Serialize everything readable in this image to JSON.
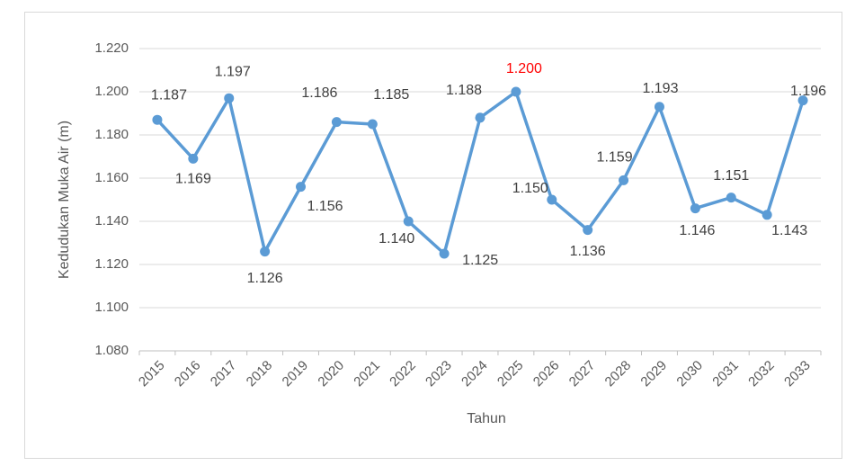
{
  "chart_data": {
    "type": "line",
    "x_label": "Tahun",
    "y_label": "Kedudukan Muka Air (m)",
    "categories": [
      "2015",
      "2016",
      "2017",
      "2018",
      "2019",
      "2020",
      "2021",
      "2022",
      "2023",
      "2024",
      "2025",
      "2026",
      "2027",
      "2028",
      "2029",
      "2030",
      "2031",
      "2032",
      "2033"
    ],
    "series": [
      {
        "color": "#5b9bd5",
        "values": [
          1.187,
          1.169,
          1.197,
          1.126,
          1.156,
          1.186,
          1.185,
          1.14,
          1.125,
          1.188,
          1.2,
          1.15,
          1.136,
          1.159,
          1.193,
          1.146,
          1.151,
          1.143,
          1.196
        ],
        "value_labels": [
          "1.187",
          "1.169",
          "1.197",
          "1.126",
          "1.156",
          "1.186",
          "1.185",
          "1.140",
          "1.125",
          "1.188",
          "1.200",
          "1.150",
          "1.136",
          "1.159",
          "1.193",
          "1.146",
          "1.151",
          "1.143",
          "1.196"
        ],
        "value_label_colors": [
          "#404040",
          "#404040",
          "#404040",
          "#404040",
          "#404040",
          "#404040",
          "#404040",
          "#404040",
          "#404040",
          "#404040",
          "#ff0000",
          "#404040",
          "#404040",
          "#404040",
          "#404040",
          "#404040",
          "#404040",
          "#404040",
          "#404040"
        ]
      }
    ],
    "ylim": [
      1.08,
      1.22
    ],
    "yticks": [
      {
        "value": 1.08,
        "label": "1.080"
      },
      {
        "value": 1.1,
        "label": "1.100"
      },
      {
        "value": 1.12,
        "label": "1.120"
      },
      {
        "value": 1.14,
        "label": "1.140"
      },
      {
        "value": 1.16,
        "label": "1.160"
      },
      {
        "value": 1.18,
        "label": "1.180"
      },
      {
        "value": 1.2,
        "label": "1.200"
      },
      {
        "value": 1.22,
        "label": "1.220"
      }
    ],
    "grid": true
  }
}
